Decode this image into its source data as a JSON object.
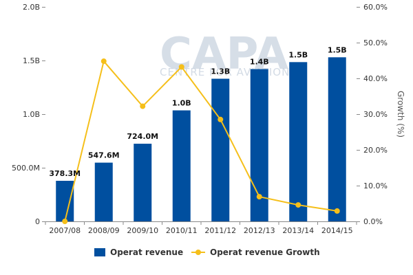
{
  "watermark": {
    "brand": "CAPA",
    "sub": "CENTRE FOR AVIATION"
  },
  "chart_data": {
    "type": "bar",
    "title": "",
    "categories": [
      "2007/08",
      "2008/09",
      "2009/10",
      "2010/11",
      "2011/12",
      "2012/13",
      "2013/14",
      "2014/15"
    ],
    "series": [
      {
        "name": "Operat revenue",
        "type": "bar",
        "axis": "left",
        "values": [
          378300000,
          547600000,
          724000000,
          1035000000,
          1330000000,
          1420000000,
          1485000000,
          1530000000
        ],
        "labels": [
          "378.3M",
          "547.6M",
          "724.0M",
          "1.0B",
          "1.3B",
          "1.4B",
          "1.5B",
          "1.5B"
        ]
      },
      {
        "name": "Operat revenue Growth",
        "type": "line",
        "axis": "right",
        "values": [
          0.0,
          44.8,
          32.2,
          43.2,
          28.5,
          6.9,
          4.6,
          2.9
        ]
      }
    ],
    "y_left": {
      "min": 0,
      "max": 2000000000,
      "ticks": [
        0,
        500000000,
        1000000000,
        1500000000,
        2000000000
      ],
      "tick_labels": [
        "0",
        "500.0M",
        "1.0B",
        "1.5B",
        "2.0B"
      ]
    },
    "y_right": {
      "label": "Growth (%)",
      "min": 0,
      "max": 60,
      "ticks": [
        0,
        10,
        20,
        30,
        40,
        50,
        60
      ],
      "tick_labels": [
        "0.0%",
        "10.0%",
        "20.0%",
        "30.0%",
        "40.0%",
        "50.0%",
        "60.0%"
      ]
    },
    "grid": false,
    "legend": "bottom",
    "colors": {
      "bar": "#004f9f",
      "line": "#f5bf1a"
    }
  }
}
